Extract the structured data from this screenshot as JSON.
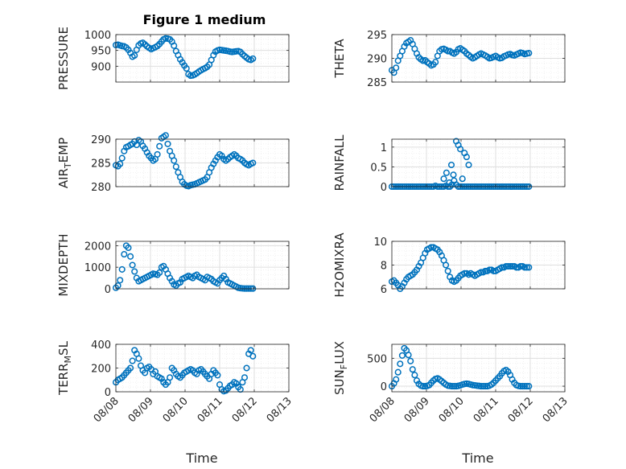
{
  "figure": {
    "title": "Figure 1 medium",
    "xlabel": "Time"
  },
  "style": {
    "marker_color": "#0072bd",
    "axis_color": "#262626",
    "grid_color": "#dfdfdf"
  },
  "chart_data": [
    {
      "type": "scatter",
      "ylabel": "PRESSURE",
      "xlim": [
        0,
        5
      ],
      "ylim": [
        850,
        1000
      ],
      "yticks": [
        900,
        950,
        1000
      ],
      "xticks": [
        0,
        1,
        2,
        3,
        4,
        5
      ],
      "xticklabels": [
        "",
        "",
        "",
        "",
        "",
        ""
      ],
      "grid": true,
      "x": [
        0.0,
        0.06,
        0.12,
        0.18,
        0.24,
        0.3,
        0.36,
        0.42,
        0.48,
        0.54,
        0.6,
        0.66,
        0.72,
        0.78,
        0.84,
        0.9,
        0.96,
        1.02,
        1.08,
        1.14,
        1.2,
        1.26,
        1.32,
        1.38,
        1.44,
        1.5,
        1.56,
        1.62,
        1.68,
        1.74,
        1.8,
        1.86,
        1.92,
        1.98,
        2.04,
        2.1,
        2.16,
        2.22,
        2.28,
        2.34,
        2.4,
        2.46,
        2.52,
        2.58,
        2.64,
        2.7,
        2.76,
        2.82,
        2.88,
        2.94,
        3.0,
        3.06,
        3.12,
        3.18,
        3.24,
        3.3,
        3.36,
        3.42,
        3.48,
        3.54,
        3.6,
        3.66,
        3.72,
        3.78,
        3.84,
        3.9,
        3.96
      ],
      "y": [
        967,
        968,
        966,
        964,
        963,
        959,
        952,
        942,
        930,
        934,
        952,
        966,
        972,
        974,
        969,
        963,
        958,
        954,
        957,
        960,
        964,
        970,
        978,
        985,
        988,
        987,
        985,
        978,
        965,
        948,
        935,
        922,
        912,
        902,
        893,
        875,
        870,
        871,
        874,
        878,
        883,
        887,
        891,
        894,
        898,
        905,
        920,
        935,
        946,
        950,
        952,
        951,
        950,
        949,
        948,
        946,
        945,
        946,
        947,
        948,
        945,
        938,
        932,
        927,
        922,
        920,
        924
      ]
    },
    {
      "type": "scatter",
      "ylabel": "THETA",
      "xlim": [
        0,
        5
      ],
      "ylim": [
        285,
        295
      ],
      "yticks": [
        285,
        290,
        295
      ],
      "xticks": [
        0,
        1,
        2,
        3,
        4,
        5
      ],
      "xticklabels": [
        "",
        "",
        "",
        "",
        "",
        ""
      ],
      "grid": true,
      "x": [
        0.0,
        0.06,
        0.12,
        0.18,
        0.24,
        0.3,
        0.36,
        0.42,
        0.48,
        0.54,
        0.6,
        0.66,
        0.72,
        0.78,
        0.84,
        0.9,
        0.96,
        1.02,
        1.08,
        1.14,
        1.2,
        1.26,
        1.32,
        1.38,
        1.44,
        1.5,
        1.56,
        1.62,
        1.68,
        1.74,
        1.8,
        1.86,
        1.92,
        1.98,
        2.04,
        2.1,
        2.16,
        2.22,
        2.28,
        2.34,
        2.4,
        2.46,
        2.52,
        2.58,
        2.64,
        2.7,
        2.76,
        2.82,
        2.88,
        2.94,
        3.0,
        3.06,
        3.12,
        3.18,
        3.24,
        3.3,
        3.36,
        3.42,
        3.48,
        3.54,
        3.6,
        3.66,
        3.72,
        3.78,
        3.84,
        3.9,
        3.96
      ],
      "y": [
        287.5,
        287.0,
        288.0,
        289.5,
        290.5,
        291.5,
        292.5,
        293.2,
        293.5,
        293.8,
        293.0,
        292.0,
        291.0,
        290.2,
        289.8,
        289.5,
        289.6,
        289.2,
        288.9,
        288.5,
        288.7,
        289.2,
        290.5,
        291.5,
        291.9,
        292.0,
        291.8,
        291.5,
        291.5,
        291.2,
        291.0,
        291.3,
        291.9,
        292.1,
        291.8,
        291.5,
        291.0,
        290.7,
        290.3,
        290.0,
        290.2,
        290.5,
        290.8,
        291.0,
        290.8,
        290.6,
        290.3,
        290.0,
        290.1,
        290.3,
        290.5,
        290.2,
        290.0,
        290.1,
        290.4,
        290.6,
        290.8,
        290.9,
        290.7,
        290.6,
        290.8,
        291.0,
        291.2,
        291.1,
        290.9,
        291.0,
        291.1
      ]
    },
    {
      "type": "scatter",
      "ylabel": "AIR_TEMP",
      "xlim": [
        0,
        5
      ],
      "ylim": [
        280,
        290
      ],
      "yticks": [
        280,
        285,
        290
      ],
      "xticks": [
        0,
        1,
        2,
        3,
        4,
        5
      ],
      "xticklabels": [
        "",
        "",
        "",
        "",
        "",
        ""
      ],
      "grid": true,
      "x": [
        0.0,
        0.06,
        0.12,
        0.18,
        0.24,
        0.3,
        0.36,
        0.42,
        0.48,
        0.54,
        0.6,
        0.66,
        0.72,
        0.78,
        0.84,
        0.9,
        0.96,
        1.02,
        1.08,
        1.14,
        1.2,
        1.26,
        1.32,
        1.38,
        1.44,
        1.5,
        1.56,
        1.62,
        1.68,
        1.74,
        1.8,
        1.86,
        1.92,
        1.98,
        2.04,
        2.1,
        2.16,
        2.22,
        2.28,
        2.34,
        2.4,
        2.46,
        2.52,
        2.58,
        2.64,
        2.7,
        2.76,
        2.82,
        2.88,
        2.94,
        3.0,
        3.06,
        3.12,
        3.18,
        3.24,
        3.3,
        3.36,
        3.42,
        3.48,
        3.54,
        3.6,
        3.66,
        3.72,
        3.78,
        3.84,
        3.9,
        3.96
      ],
      "y": [
        284.5,
        284.3,
        284.8,
        286.0,
        287.5,
        288.3,
        288.5,
        288.8,
        289.0,
        289.5,
        288.8,
        289.8,
        289.5,
        288.6,
        288.0,
        287.2,
        286.5,
        286.0,
        285.5,
        285.8,
        286.8,
        288.5,
        290.2,
        290.5,
        290.8,
        289.0,
        287.5,
        286.5,
        285.5,
        284.2,
        283.0,
        282.0,
        281.0,
        280.5,
        280.2,
        280.1,
        280.3,
        280.4,
        280.5,
        280.7,
        280.9,
        281.1,
        281.3,
        281.5,
        282.0,
        283.0,
        284.0,
        284.8,
        285.5,
        286.2,
        286.8,
        286.5,
        285.8,
        285.5,
        285.8,
        286.2,
        286.5,
        286.8,
        286.5,
        286.0,
        285.8,
        285.5,
        285.0,
        284.7,
        284.5,
        284.8,
        285.0
      ]
    },
    {
      "type": "scatter",
      "ylabel": "RAINFALL",
      "xlim": [
        0,
        5
      ],
      "ylim": [
        0,
        1.2
      ],
      "yticks": [
        0,
        0.5,
        1
      ],
      "xticks": [
        0,
        1,
        2,
        3,
        4,
        5
      ],
      "xticklabels": [
        "",
        "",
        "",
        "",
        "",
        ""
      ],
      "grid": true,
      "x": [
        0.0,
        0.06,
        0.12,
        0.18,
        0.24,
        0.3,
        0.36,
        0.42,
        0.48,
        0.54,
        0.6,
        0.66,
        0.72,
        0.78,
        0.84,
        0.9,
        0.96,
        1.02,
        1.08,
        1.14,
        1.2,
        1.26,
        1.32,
        1.38,
        1.44,
        1.5,
        1.56,
        1.62,
        1.68,
        1.74,
        1.8,
        1.86,
        1.92,
        1.98,
        2.04,
        2.1,
        2.16,
        2.22,
        2.28,
        2.34,
        2.4,
        2.46,
        2.52,
        2.58,
        2.64,
        2.7,
        2.76,
        2.82,
        2.88,
        2.94,
        3.0,
        3.06,
        3.12,
        3.18,
        3.24,
        3.3,
        3.36,
        3.42,
        3.48,
        3.54,
        3.6,
        3.66,
        3.72,
        3.78,
        3.84,
        3.9,
        3.96,
        1.5,
        1.58,
        1.66,
        1.72,
        1.78,
        1.86,
        1.92,
        1.98,
        2.04,
        2.1,
        2.16,
        2.22
      ],
      "y": [
        0,
        0,
        0,
        0,
        0,
        0,
        0,
        0,
        0,
        0,
        0,
        0,
        0,
        0,
        0,
        0,
        0,
        0,
        0,
        0,
        0,
        0.02,
        0,
        0,
        0,
        0,
        0.02,
        0,
        0,
        0.05,
        0.15,
        0.05,
        0,
        0,
        0,
        0,
        0,
        0,
        0,
        0,
        0,
        0,
        0,
        0,
        0,
        0,
        0,
        0,
        0,
        0,
        0,
        0,
        0,
        0,
        0,
        0,
        0,
        0,
        0,
        0,
        0,
        0,
        0,
        0,
        0,
        0,
        0,
        0.2,
        0.35,
        0.1,
        0.55,
        0.3,
        1.15,
        1.05,
        0.95,
        0.2,
        0.85,
        0.75,
        0.55
      ]
    },
    {
      "type": "scatter",
      "ylabel": "MIXDEPTH",
      "xlim": [
        0,
        5
      ],
      "ylim": [
        0,
        2200
      ],
      "yticks": [
        0,
        1000,
        2000
      ],
      "xticks": [
        0,
        1,
        2,
        3,
        4,
        5
      ],
      "xticklabels": [
        "",
        "",
        "",
        "",
        "",
        ""
      ],
      "grid": true,
      "x": [
        0.0,
        0.06,
        0.12,
        0.18,
        0.24,
        0.3,
        0.36,
        0.42,
        0.48,
        0.54,
        0.6,
        0.66,
        0.72,
        0.78,
        0.84,
        0.9,
        0.96,
        1.02,
        1.08,
        1.14,
        1.2,
        1.26,
        1.32,
        1.38,
        1.44,
        1.5,
        1.56,
        1.62,
        1.68,
        1.74,
        1.8,
        1.86,
        1.92,
        1.98,
        2.04,
        2.1,
        2.16,
        2.22,
        2.28,
        2.34,
        2.4,
        2.46,
        2.52,
        2.58,
        2.64,
        2.7,
        2.76,
        2.82,
        2.88,
        2.94,
        3.0,
        3.06,
        3.12,
        3.18,
        3.24,
        3.3,
        3.36,
        3.42,
        3.48,
        3.54,
        3.6,
        3.66,
        3.72,
        3.78,
        3.84,
        3.9,
        3.96
      ],
      "y": [
        50,
        150,
        400,
        900,
        1600,
        2000,
        1900,
        1500,
        1100,
        800,
        500,
        350,
        400,
        450,
        500,
        550,
        600,
        650,
        700,
        680,
        650,
        750,
        1000,
        1050,
        900,
        700,
        500,
        350,
        200,
        150,
        250,
        300,
        450,
        500,
        550,
        600,
        550,
        500,
        600,
        650,
        550,
        500,
        450,
        400,
        550,
        500,
        450,
        350,
        300,
        250,
        400,
        500,
        600,
        450,
        300,
        250,
        200,
        150,
        100,
        50,
        30,
        20,
        10,
        10,
        10,
        10,
        10
      ]
    },
    {
      "type": "scatter",
      "ylabel": "H2OMIXRA",
      "xlim": [
        0,
        5
      ],
      "ylim": [
        6,
        10
      ],
      "yticks": [
        6,
        8,
        10
      ],
      "xticks": [
        0,
        1,
        2,
        3,
        4,
        5
      ],
      "xticklabels": [
        "",
        "",
        "",
        "",
        "",
        ""
      ],
      "grid": true,
      "x": [
        0.0,
        0.06,
        0.12,
        0.18,
        0.24,
        0.3,
        0.36,
        0.42,
        0.48,
        0.54,
        0.6,
        0.66,
        0.72,
        0.78,
        0.84,
        0.9,
        0.96,
        1.02,
        1.08,
        1.14,
        1.2,
        1.26,
        1.32,
        1.38,
        1.44,
        1.5,
        1.56,
        1.62,
        1.68,
        1.74,
        1.8,
        1.86,
        1.92,
        1.98,
        2.04,
        2.1,
        2.16,
        2.22,
        2.28,
        2.34,
        2.4,
        2.46,
        2.52,
        2.58,
        2.64,
        2.7,
        2.76,
        2.82,
        2.88,
        2.94,
        3.0,
        3.06,
        3.12,
        3.18,
        3.24,
        3.3,
        3.36,
        3.42,
        3.48,
        3.54,
        3.6,
        3.66,
        3.72,
        3.78,
        3.84,
        3.9,
        3.96
      ],
      "y": [
        6.6,
        6.7,
        6.5,
        6.3,
        6.0,
        6.2,
        6.5,
        6.8,
        7.0,
        7.1,
        7.2,
        7.4,
        7.6,
        7.9,
        8.2,
        8.6,
        9.0,
        9.3,
        9.4,
        9.5,
        9.5,
        9.4,
        9.3,
        9.1,
        8.8,
        8.4,
        8.0,
        7.5,
        7.0,
        6.7,
        6.6,
        6.7,
        6.9,
        7.1,
        7.2,
        7.3,
        7.3,
        7.2,
        7.3,
        7.2,
        7.1,
        7.2,
        7.3,
        7.4,
        7.4,
        7.5,
        7.5,
        7.6,
        7.6,
        7.5,
        7.5,
        7.6,
        7.7,
        7.8,
        7.8,
        7.9,
        7.9,
        7.9,
        7.9,
        7.9,
        7.8,
        7.8,
        7.9,
        7.9,
        7.8,
        7.8,
        7.8
      ]
    },
    {
      "type": "scatter",
      "ylabel": "TERR_MSL",
      "xlim": [
        0,
        5
      ],
      "ylim": [
        0,
        400
      ],
      "yticks": [
        0,
        200,
        400
      ],
      "xticks": [
        0,
        1,
        2,
        3,
        4,
        5
      ],
      "xticklabels": [
        "08/08",
        "08/09",
        "08/10",
        "08/11",
        "08/12",
        "08/13"
      ],
      "grid": true,
      "x": [
        0.0,
        0.06,
        0.12,
        0.18,
        0.24,
        0.3,
        0.36,
        0.42,
        0.48,
        0.54,
        0.6,
        0.66,
        0.72,
        0.78,
        0.84,
        0.9,
        0.96,
        1.02,
        1.08,
        1.14,
        1.2,
        1.26,
        1.32,
        1.38,
        1.44,
        1.5,
        1.56,
        1.62,
        1.68,
        1.74,
        1.8,
        1.86,
        1.92,
        1.98,
        2.04,
        2.1,
        2.16,
        2.22,
        2.28,
        2.34,
        2.4,
        2.46,
        2.52,
        2.58,
        2.64,
        2.7,
        2.76,
        2.82,
        2.88,
        2.94,
        3.0,
        3.06,
        3.12,
        3.18,
        3.24,
        3.3,
        3.36,
        3.42,
        3.48,
        3.54,
        3.6,
        3.66,
        3.72,
        3.78,
        3.84,
        3.9,
        3.96
      ],
      "y": [
        80,
        100,
        110,
        120,
        140,
        160,
        180,
        200,
        260,
        350,
        320,
        280,
        220,
        180,
        160,
        200,
        210,
        190,
        150,
        170,
        130,
        120,
        110,
        80,
        60,
        80,
        120,
        200,
        180,
        150,
        130,
        120,
        140,
        160,
        170,
        180,
        190,
        180,
        160,
        150,
        180,
        190,
        170,
        150,
        130,
        110,
        150,
        180,
        160,
        140,
        60,
        20,
        5,
        10,
        30,
        50,
        60,
        80,
        70,
        40,
        20,
        80,
        120,
        200,
        320,
        350,
        300
      ]
    },
    {
      "type": "scatter",
      "ylabel": "SUN_FLUX",
      "xlim": [
        0,
        5
      ],
      "ylim": [
        -100,
        750
      ],
      "yticks": [
        0,
        500
      ],
      "xticks": [
        0,
        1,
        2,
        3,
        4,
        5
      ],
      "xticklabels": [
        "08/08",
        "08/09",
        "08/10",
        "08/11",
        "08/12",
        "08/13"
      ],
      "grid": true,
      "x": [
        0.0,
        0.06,
        0.12,
        0.18,
        0.24,
        0.3,
        0.36,
        0.42,
        0.48,
        0.54,
        0.6,
        0.66,
        0.72,
        0.78,
        0.84,
        0.9,
        0.96,
        1.02,
        1.08,
        1.14,
        1.2,
        1.26,
        1.32,
        1.38,
        1.44,
        1.5,
        1.56,
        1.62,
        1.68,
        1.74,
        1.8,
        1.86,
        1.92,
        1.98,
        2.04,
        2.1,
        2.16,
        2.22,
        2.28,
        2.34,
        2.4,
        2.46,
        2.52,
        2.58,
        2.64,
        2.7,
        2.76,
        2.82,
        2.88,
        2.94,
        3.0,
        3.06,
        3.12,
        3.18,
        3.24,
        3.3,
        3.36,
        3.42,
        3.48,
        3.54,
        3.6,
        3.66,
        3.72,
        3.78,
        3.84,
        3.9,
        3.96
      ],
      "y": [
        0,
        50,
        120,
        250,
        400,
        550,
        680,
        640,
        560,
        450,
        300,
        200,
        100,
        40,
        10,
        0,
        0,
        5,
        20,
        60,
        100,
        130,
        140,
        120,
        90,
        60,
        30,
        10,
        5,
        0,
        0,
        0,
        5,
        15,
        30,
        40,
        45,
        40,
        30,
        20,
        15,
        10,
        5,
        0,
        0,
        0,
        0,
        10,
        30,
        60,
        100,
        140,
        180,
        230,
        270,
        290,
        260,
        200,
        120,
        60,
        20,
        5,
        0,
        0,
        0,
        0,
        0
      ]
    }
  ]
}
